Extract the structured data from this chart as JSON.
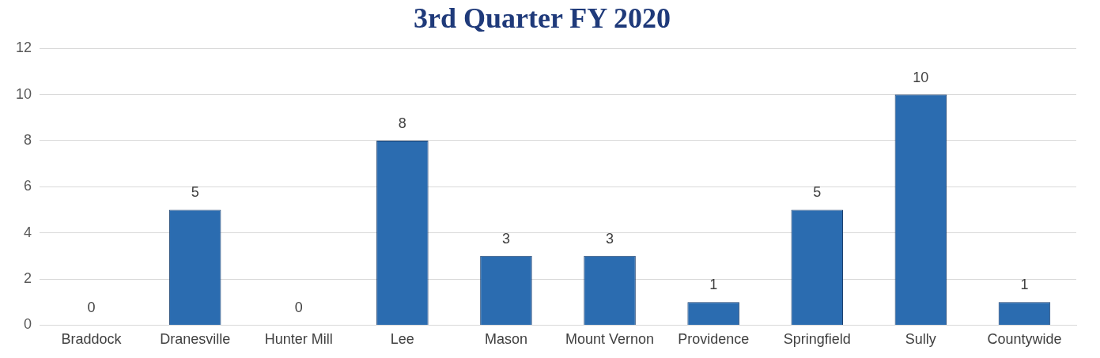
{
  "chart_data": {
    "type": "bar",
    "title": "3rd Quarter FY 2020",
    "categories": [
      "Braddock",
      "Dranesville",
      "Hunter Mill",
      "Lee",
      "Mason",
      "Mount Vernon",
      "Providence",
      "Springfield",
      "Sully",
      "Countywide"
    ],
    "values": [
      0,
      5,
      0,
      8,
      3,
      3,
      1,
      5,
      10,
      1
    ],
    "color": "#2b6cb0",
    "ylim": [
      0,
      12
    ],
    "yticks": [
      0,
      2,
      4,
      6,
      8,
      10,
      12
    ],
    "grid": "y",
    "data_labels": true
  }
}
